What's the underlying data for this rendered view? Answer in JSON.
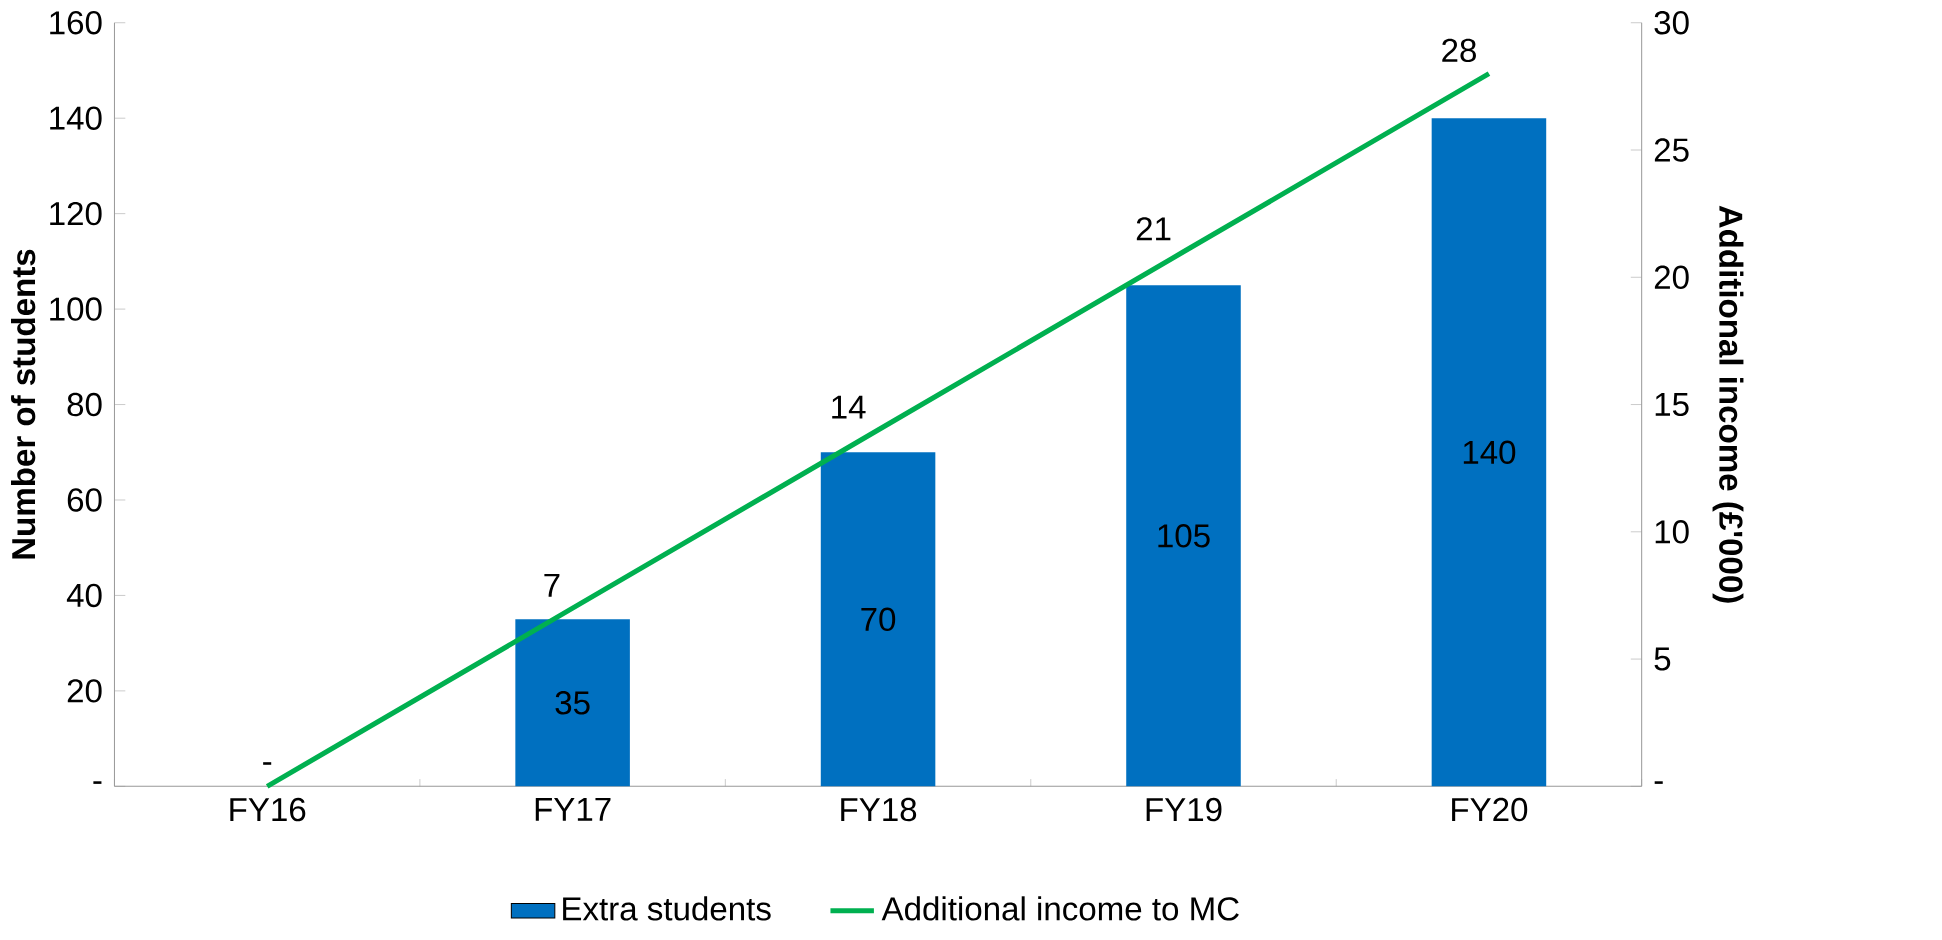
{
  "chart_data": {
    "type": "bar",
    "categories": [
      "FY16",
      "FY17",
      "FY18",
      "FY19",
      "FY20"
    ],
    "ylabel": "Number of students",
    "y2label": "Additional income (£'000)",
    "series": [
      {
        "name": "Extra students",
        "color": "#0070c0",
        "values": [
          0,
          35,
          70,
          105,
          140
        ],
        "value_labels": [
          "-",
          "35",
          "70",
          "105",
          "140"
        ]
      },
      {
        "name": "Additional income to MC",
        "type": "line",
        "axis": "y2",
        "color": "#00b050",
        "values": [
          0,
          7,
          14,
          21,
          28
        ],
        "value_labels": [
          null,
          "7",
          "14",
          "21",
          "28"
        ]
      }
    ],
    "ylim": [
      0,
      160
    ],
    "yticks": [
      {
        "value": 0,
        "label": "-"
      },
      20,
      40,
      60,
      80,
      100,
      120,
      140,
      160
    ],
    "y2lim": [
      0,
      30
    ],
    "y2ticks": [
      {
        "value": 0,
        "label": "-"
      },
      5,
      10,
      15,
      20,
      25,
      30
    ],
    "legend": "bottom",
    "grid": false,
    "marker": "none",
    "line_style": "solid"
  }
}
